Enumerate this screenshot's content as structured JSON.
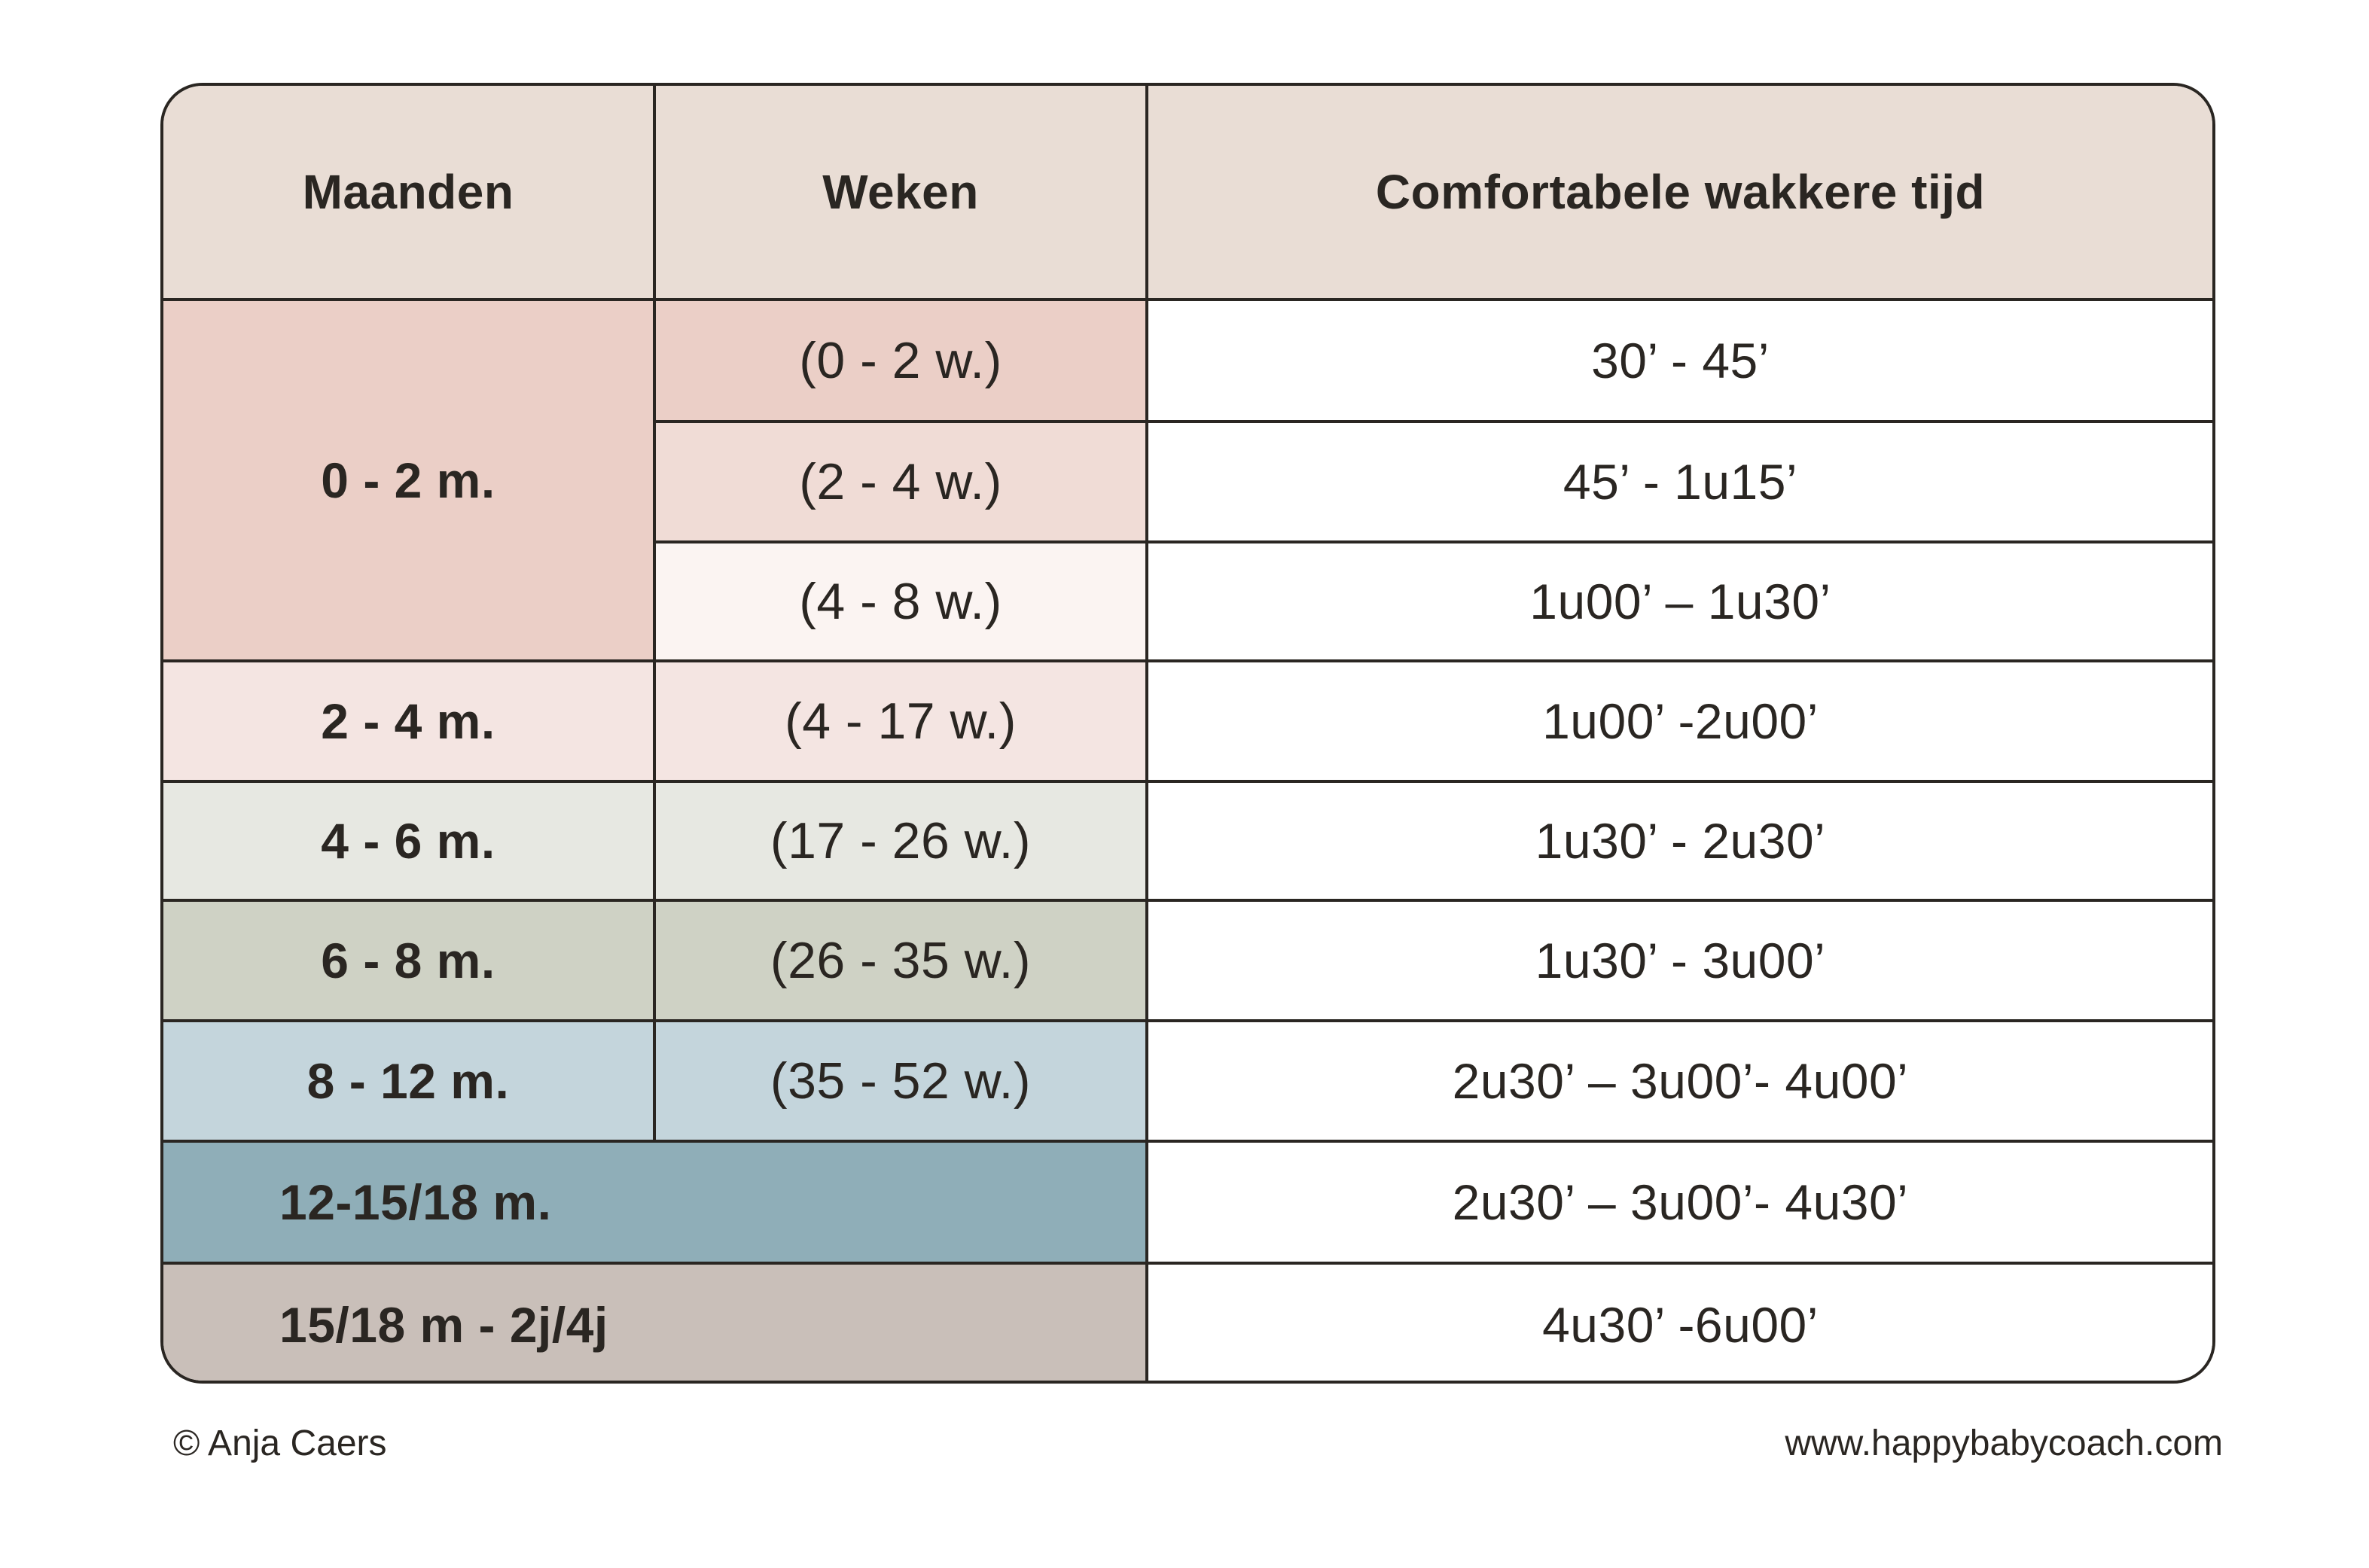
{
  "table": {
    "headers": {
      "months": "Maanden",
      "weeks": "Weken",
      "awake_time": "Comfortabele wakkere tijd"
    },
    "groups": [
      {
        "months": "0 - 2 m.",
        "color": "#ebcfc7"
      },
      {
        "months": "2 - 4 m.",
        "color": "#f4e5e2"
      },
      {
        "months": "4 - 6 m.",
        "color": "#e7e8e2"
      },
      {
        "months": "6 - 8 m.",
        "color": "#cfd2c5"
      },
      {
        "months": "8 - 12 m.",
        "color": "#c4d5dc"
      },
      {
        "months": "12-15/18 m.",
        "color": "#8faeb8"
      },
      {
        "months": "15/18 m - 2j/4j",
        "color": "#c9bfb9"
      }
    ],
    "rows": [
      {
        "weeks": "(0 - 2 w.)",
        "weeks_color": "#ebcfc7",
        "awake_time": "30’ - 45’"
      },
      {
        "weeks": "(2 - 4 w.)",
        "weeks_color": "#f0dcd6",
        "awake_time": "45’ - 1u15’"
      },
      {
        "weeks": "(4 - 8 w.)",
        "weeks_color": "#fbf4f2",
        "awake_time": "1u00’ – 1u30’"
      },
      {
        "weeks": "(4 - 17 w.)",
        "weeks_color": "#f4e5e2",
        "awake_time": "1u00’ -2u00’"
      },
      {
        "weeks": "(17 - 26 w.)",
        "weeks_color": "#e7e8e2",
        "awake_time": "1u30’ - 2u30’"
      },
      {
        "weeks": "(26 - 35 w.)",
        "weeks_color": "#cfd2c5",
        "awake_time": "1u30’ - 3u00’"
      },
      {
        "weeks": "(35 - 52 w.)",
        "weeks_color": "#c4d5dc",
        "awake_time": "2u30’ – 3u00’- 4u00’"
      },
      {
        "weeks": "",
        "weeks_color": "",
        "awake_time": "2u30’ – 3u00’- 4u30’"
      },
      {
        "weeks": "",
        "weeks_color": "",
        "awake_time": "4u30’ -6u00’"
      }
    ]
  },
  "footer": {
    "copyright": "© Anja Caers",
    "website": "www.happybabycoach.com"
  }
}
